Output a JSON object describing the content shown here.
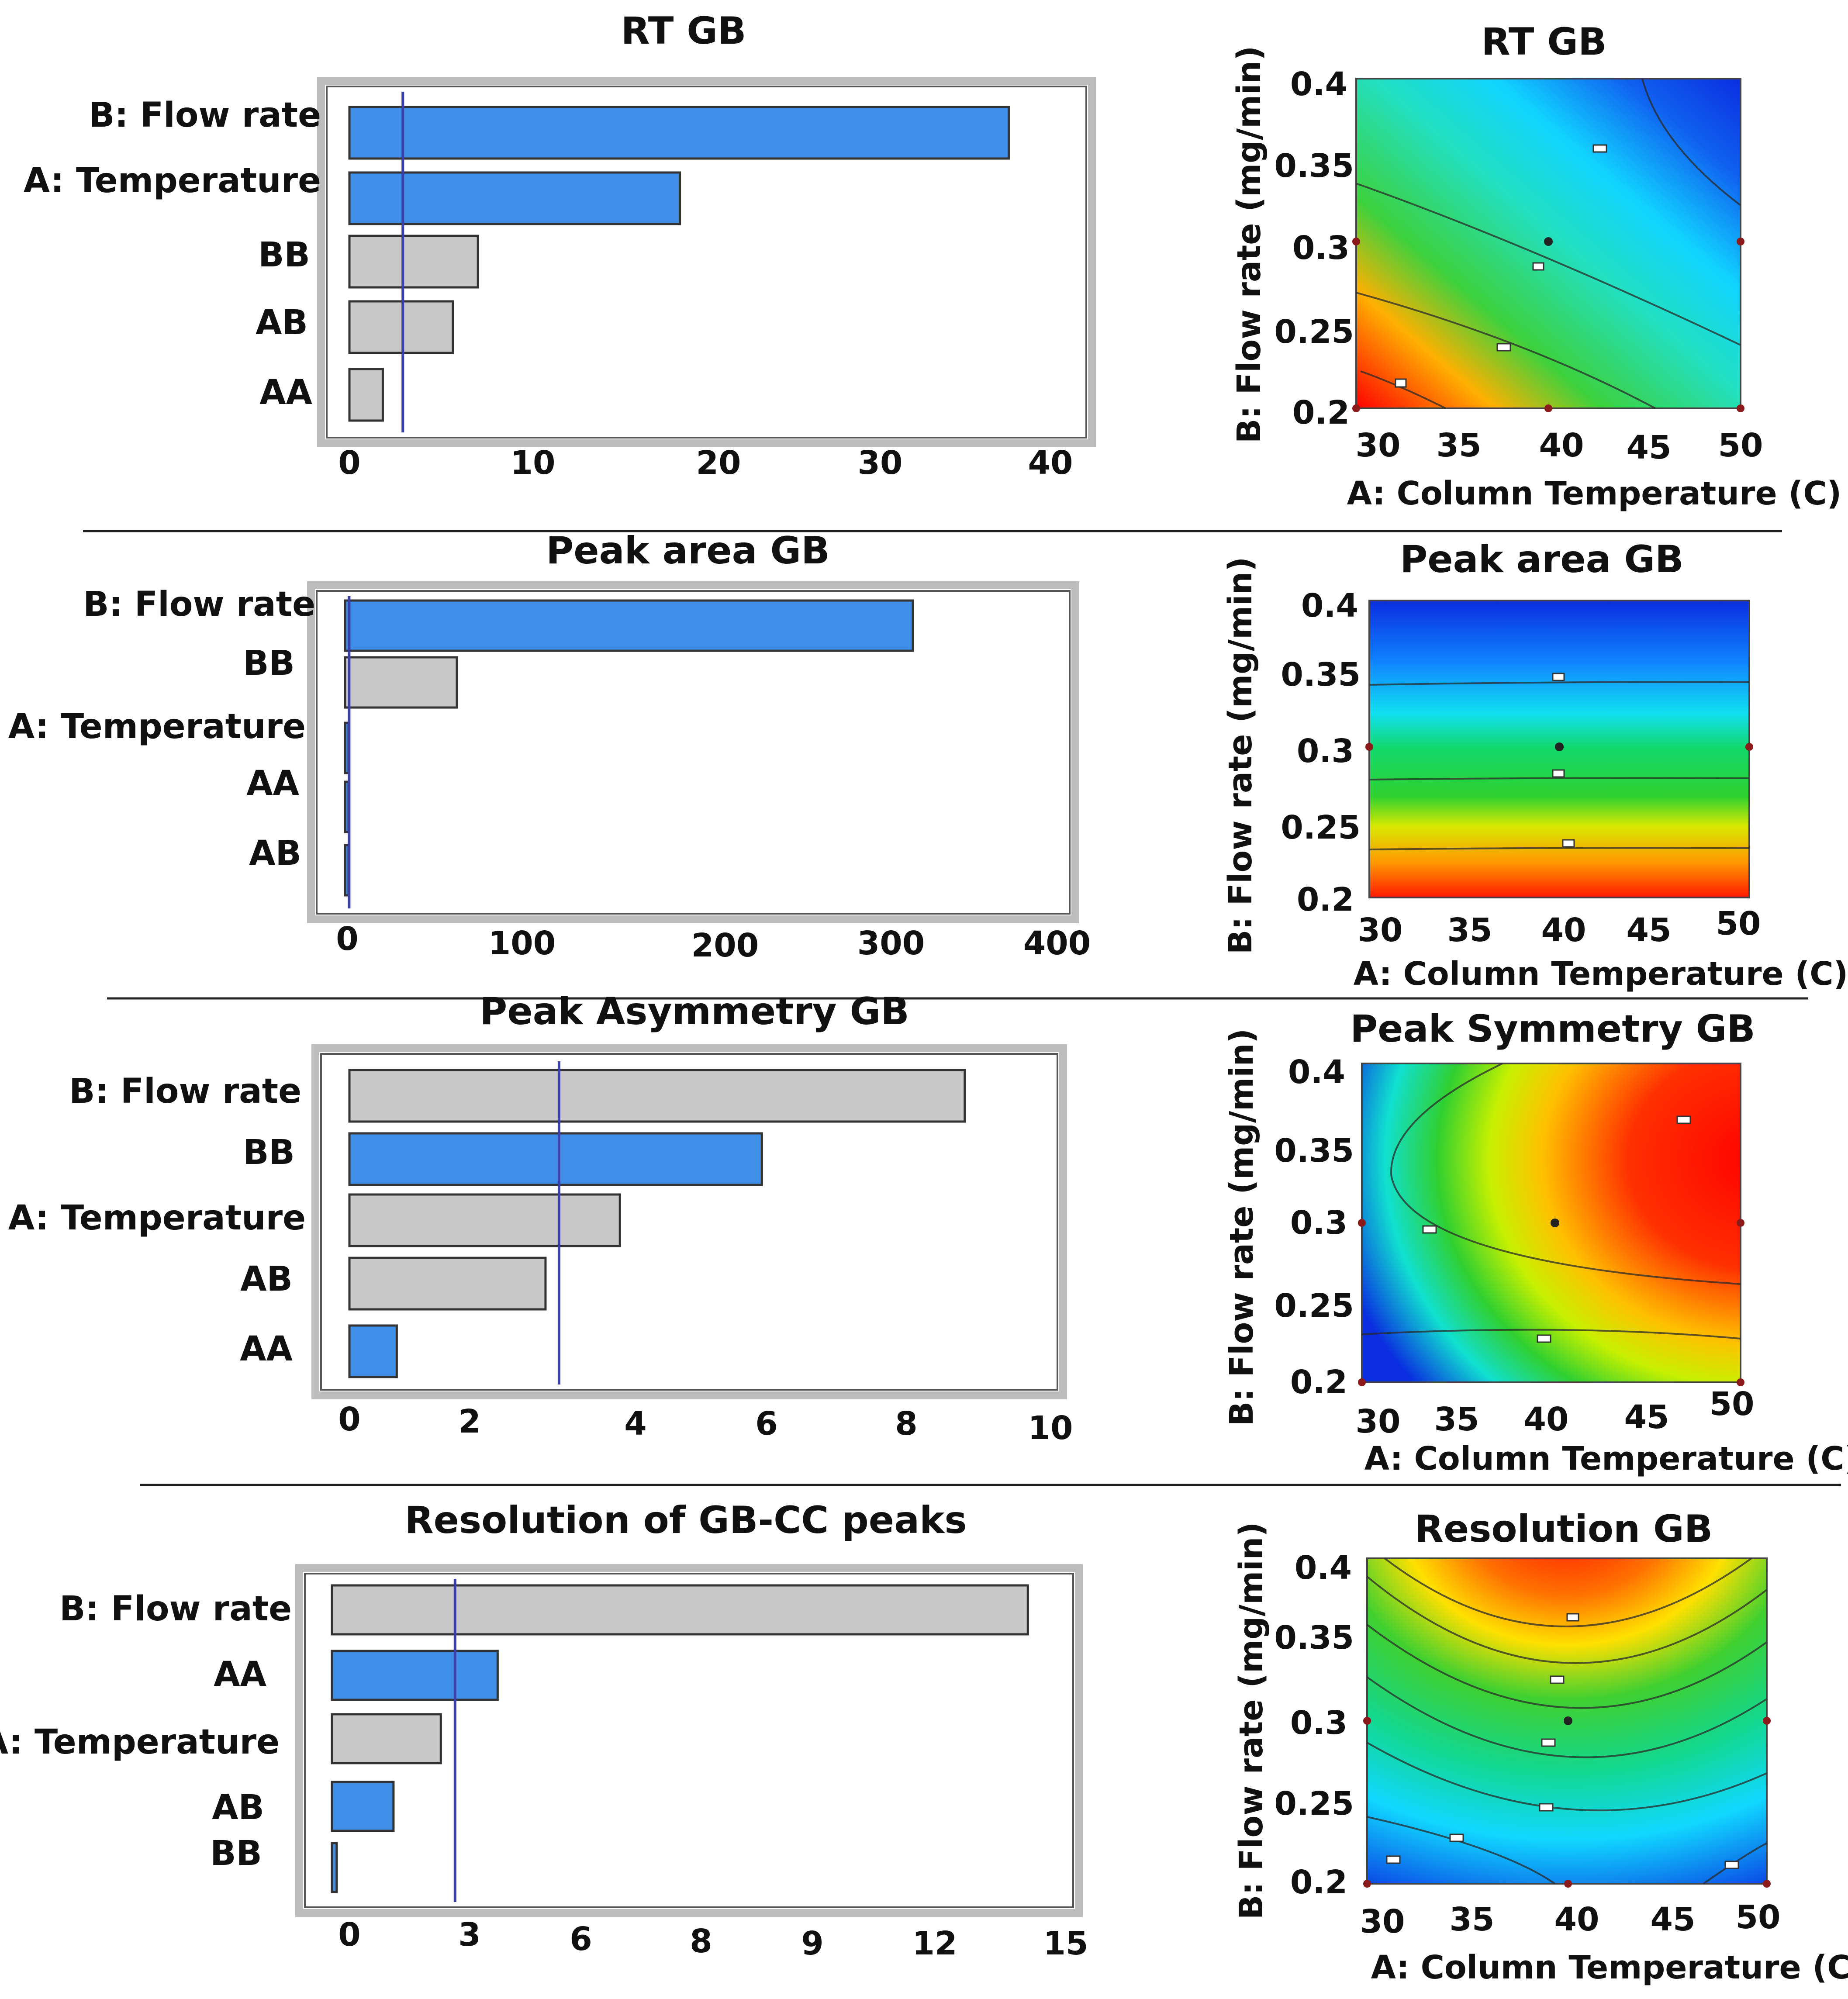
{
  "colors": {
    "significant_bar": "#3f8ee8",
    "insignificant_bar": "#c8c8c8",
    "reference_line": "#3b3fa8",
    "frame": "#bdbdbd"
  },
  "panels": [
    {
      "pareto": {
        "title": "RT GB",
        "labels": [
          "B: Flow rate",
          "A: Temperature",
          "BB",
          "AB",
          "AA"
        ],
        "ticks": [
          "0",
          "10",
          "20",
          "30",
          "40"
        ]
      },
      "contour": {
        "title": "RT GB",
        "xlabel": "A: Column Temperature (C)",
        "ylabel": "B: Flow rate (mg/min)",
        "xticks": [
          "30",
          "35",
          "40",
          "45",
          "50"
        ],
        "yticks": [
          "0.4",
          "0.35",
          "0.3",
          "0.25",
          "0.2"
        ]
      }
    },
    {
      "pareto": {
        "title": "Peak area GB",
        "labels": [
          "B: Flow rate",
          "BB",
          "A: Temperature",
          "AA",
          "AB"
        ],
        "ticks": [
          "0",
          "100",
          "200",
          "300",
          "400"
        ]
      },
      "contour": {
        "title": "Peak area GB",
        "xlabel": "A: Column Temperature (C)",
        "ylabel": "B: Flow rate (mg/min)",
        "xticks": [
          "30",
          "35",
          "40",
          "45",
          "50"
        ],
        "yticks": [
          "0.4",
          "0.35",
          "0.3",
          "0.25",
          "0.2"
        ]
      }
    },
    {
      "pareto": {
        "title": "Peak Asymmetry GB",
        "labels": [
          "B: Flow rate",
          "BB",
          "A: Temperature",
          "AB",
          "AA"
        ],
        "ticks": [
          "0",
          "2",
          "4",
          "6",
          "8",
          "10"
        ]
      },
      "contour": {
        "title": "Peak Symmetry GB",
        "xlabel": "A: Column Temperature (C)",
        "ylabel": "B: Flow rate (mg/min)",
        "xticks": [
          "30",
          "35",
          "40",
          "45",
          "50"
        ],
        "yticks": [
          "0.4",
          "0.35",
          "0.3",
          "0.25",
          "0.2"
        ]
      }
    },
    {
      "pareto": {
        "title": "Resolution of GB-CC peaks",
        "labels": [
          "B: Flow rate",
          "AA",
          "A: Temperature",
          "AB",
          "BB"
        ],
        "ticks": [
          "0",
          "3",
          "6",
          "8",
          "9",
          "12",
          "15"
        ]
      },
      "contour": {
        "title": "Resolution GB",
        "xlabel": "A: Column Temperature (C)",
        "ylabel": "B: Flow rate (mg/min)",
        "xticks": [
          "30",
          "35",
          "40",
          "45",
          "50"
        ],
        "yticks": [
          "0.4",
          "0.35",
          "0.3",
          "0.25",
          "0.2"
        ]
      }
    }
  ],
  "chart_data": [
    {
      "type": "bar",
      "orientation": "horizontal",
      "title": "RT GB",
      "categories": [
        "B: Flow rate",
        "A: Temperature",
        "BB",
        "AB",
        "AA"
      ],
      "values": [
        39.5,
        19.8,
        7.7,
        6.2,
        2.0
      ],
      "significant": [
        true,
        true,
        false,
        false,
        false
      ],
      "reference_line": 3.2,
      "xlim": [
        0,
        42
      ]
    },
    {
      "type": "heatmap",
      "title": "RT GB",
      "xlabel": "A: Column Temperature (C)",
      "ylabel": "B: Flow rate (mg/min)",
      "xlim": [
        30,
        50
      ],
      "ylim": [
        0.2,
        0.4
      ],
      "gradient": "red (low A, low B) to blue (high A, high B)"
    },
    {
      "type": "bar",
      "orientation": "horizontal",
      "title": "Peak area GB",
      "categories": [
        "B: Flow rate",
        "BB",
        "A: Temperature",
        "AA",
        "AB"
      ],
      "values": [
        320,
        63,
        2,
        2,
        2
      ],
      "significant": [
        true,
        false,
        true,
        true,
        true
      ],
      "reference_line": 2.3,
      "xlim": [
        0,
        400
      ]
    },
    {
      "type": "heatmap",
      "title": "Peak area GB",
      "xlabel": "A: Column Temperature (C)",
      "ylabel": "B: Flow rate (mg/min)",
      "xlim": [
        30,
        50
      ],
      "ylim": [
        0.2,
        0.4
      ],
      "gradient": "red (low B) to blue (high B), horizontal bands"
    },
    {
      "type": "bar",
      "orientation": "horizontal",
      "title": "Peak Asymmetry GB",
      "categories": [
        "B: Flow rate",
        "BB",
        "A: Temperature",
        "AB",
        "AA"
      ],
      "values": [
        9.1,
        6.1,
        4.0,
        2.9,
        0.7
      ],
      "significant": [
        false,
        true,
        false,
        false,
        true
      ],
      "reference_line": 3.1,
      "xlim": [
        0,
        10.4
      ]
    },
    {
      "type": "heatmap",
      "title": "Peak Symmetry GB",
      "xlabel": "A: Column Temperature (C)",
      "ylabel": "B: Flow rate (mg/min)",
      "xlim": [
        30,
        50
      ],
      "ylim": [
        0.2,
        0.4
      ],
      "gradient": "red near A=50, B=0.35; blue near B=0.2"
    },
    {
      "type": "bar",
      "orientation": "horizontal",
      "title": "Resolution of GB-CC peaks",
      "categories": [
        "B: Flow rate",
        "AA",
        "A: Temperature",
        "AB",
        "BB"
      ],
      "values": [
        14.7,
        3.5,
        2.3,
        1.3,
        0.1
      ],
      "significant": [
        false,
        true,
        false,
        true,
        true
      ],
      "reference_line": 2.6,
      "xlim": [
        0,
        15.5
      ]
    },
    {
      "type": "heatmap",
      "title": "Resolution GB",
      "xlabel": "A: Column Temperature (C)",
      "ylabel": "B: Flow rate (mg/min)",
      "xlim": [
        30,
        50
      ],
      "ylim": [
        0.2,
        0.4
      ],
      "gradient": "red near B=0.4; blue near A=30, B=0.2"
    }
  ]
}
